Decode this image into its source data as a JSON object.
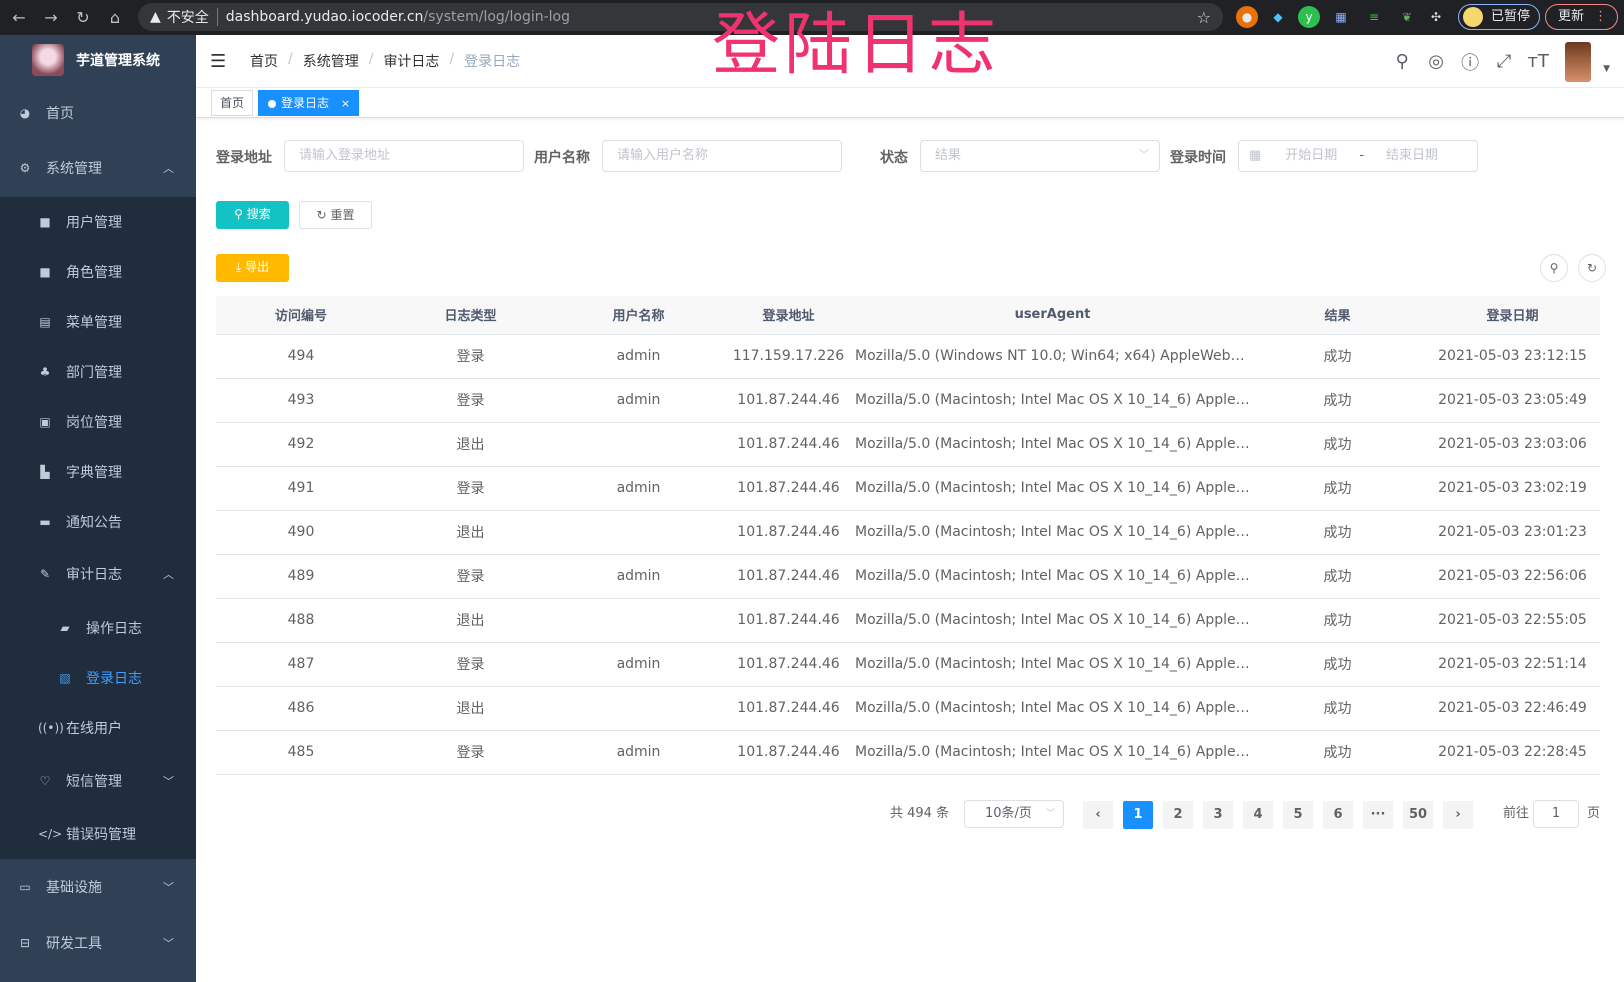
{
  "browser": {
    "insecure_label": "不安全",
    "url_host": "dashboard.yudao.iocoder.cn",
    "url_path": "/system/log/login-log",
    "profile_label": "已暂停",
    "update_label": "更新"
  },
  "overlay_title": "登陆日志",
  "sidebar": {
    "title": "芋道管理系统",
    "items": [
      {
        "label": "首页",
        "icon": "dashboard-icon"
      },
      {
        "label": "系统管理",
        "icon": "gear-icon"
      },
      {
        "label": "用户管理",
        "icon": "user-icon"
      },
      {
        "label": "角色管理",
        "icon": "peoples-icon"
      },
      {
        "label": "菜单管理",
        "icon": "tree-table-icon"
      },
      {
        "label": "部门管理",
        "icon": "tree-icon"
      },
      {
        "label": "岗位管理",
        "icon": "post-icon"
      },
      {
        "label": "字典管理",
        "icon": "dict-icon"
      },
      {
        "label": "通知公告",
        "icon": "message-icon"
      },
      {
        "label": "审计日志",
        "icon": "log-icon"
      },
      {
        "label": "操作日志",
        "icon": "form-icon"
      },
      {
        "label": "登录日志",
        "icon": "logininfor-icon"
      },
      {
        "label": "在线用户",
        "icon": "online-icon"
      },
      {
        "label": "短信管理",
        "icon": "validcode-icon"
      },
      {
        "label": "错误码管理",
        "icon": "code-icon"
      },
      {
        "label": "基础设施",
        "icon": "monitor-icon"
      },
      {
        "label": "研发工具",
        "icon": "tool-icon"
      }
    ]
  },
  "breadcrumb": [
    "首页",
    "系统管理",
    "审计日志",
    "登录日志"
  ],
  "tags": [
    {
      "label": "首页"
    },
    {
      "label": "登录日志",
      "close": "×"
    }
  ],
  "filters": {
    "address_label": "登录地址",
    "address_placeholder": "请输入登录地址",
    "username_label": "用户名称",
    "username_placeholder": "请输入用户名称",
    "status_label": "状态",
    "status_placeholder": "结果",
    "time_label": "登录时间",
    "start_placeholder": "开始日期",
    "range_sep": "-",
    "end_placeholder": "结束日期",
    "search": "搜索",
    "reset": "重置"
  },
  "export_label": "导出",
  "colors": {
    "primary": "#1890ff",
    "search": "#13c2c2",
    "export": "#ffba00",
    "sidebar": "#304156",
    "title": "#f0336e"
  },
  "table": {
    "columns": [
      "访问编号",
      "日志类型",
      "用户名称",
      "登录地址",
      "userAgent",
      "结果",
      "登录日期"
    ],
    "rows": [
      [
        "494",
        "登录",
        "admin",
        "117.159.17.226",
        "Mozilla/5.0 (Windows NT 10.0; Win64; x64) AppleWebKit...",
        "成功",
        "2021-05-03 23:12:15"
      ],
      [
        "493",
        "登录",
        "admin",
        "101.87.244.46",
        "Mozilla/5.0 (Macintosh; Intel Mac OS X 10_14_6) AppleWe...",
        "成功",
        "2021-05-03 23:05:49"
      ],
      [
        "492",
        "退出",
        "",
        "101.87.244.46",
        "Mozilla/5.0 (Macintosh; Intel Mac OS X 10_14_6) AppleWe...",
        "成功",
        "2021-05-03 23:03:06"
      ],
      [
        "491",
        "登录",
        "admin",
        "101.87.244.46",
        "Mozilla/5.0 (Macintosh; Intel Mac OS X 10_14_6) AppleWe...",
        "成功",
        "2021-05-03 23:02:19"
      ],
      [
        "490",
        "退出",
        "",
        "101.87.244.46",
        "Mozilla/5.0 (Macintosh; Intel Mac OS X 10_14_6) AppleWe...",
        "成功",
        "2021-05-03 23:01:23"
      ],
      [
        "489",
        "登录",
        "admin",
        "101.87.244.46",
        "Mozilla/5.0 (Macintosh; Intel Mac OS X 10_14_6) AppleWe...",
        "成功",
        "2021-05-03 22:56:06"
      ],
      [
        "488",
        "退出",
        "",
        "101.87.244.46",
        "Mozilla/5.0 (Macintosh; Intel Mac OS X 10_14_6) AppleWe...",
        "成功",
        "2021-05-03 22:55:05"
      ],
      [
        "487",
        "登录",
        "admin",
        "101.87.244.46",
        "Mozilla/5.0 (Macintosh; Intel Mac OS X 10_14_6) AppleWe...",
        "成功",
        "2021-05-03 22:51:14"
      ],
      [
        "486",
        "退出",
        "",
        "101.87.244.46",
        "Mozilla/5.0 (Macintosh; Intel Mac OS X 10_14_6) AppleWe...",
        "成功",
        "2021-05-03 22:46:49"
      ],
      [
        "485",
        "登录",
        "admin",
        "101.87.244.46",
        "Mozilla/5.0 (Macintosh; Intel Mac OS X 10_14_6) AppleWe...",
        "成功",
        "2021-05-03 22:28:45"
      ]
    ]
  },
  "pagination": {
    "total_label": "共 494 条",
    "page_size": "10条/页",
    "pages": [
      "1",
      "2",
      "3",
      "4",
      "5",
      "6",
      "···",
      "50"
    ],
    "current": "1",
    "goto_label": "前往",
    "goto_value": "1",
    "page_suffix": "页",
    "prev": "‹",
    "next": "›"
  }
}
